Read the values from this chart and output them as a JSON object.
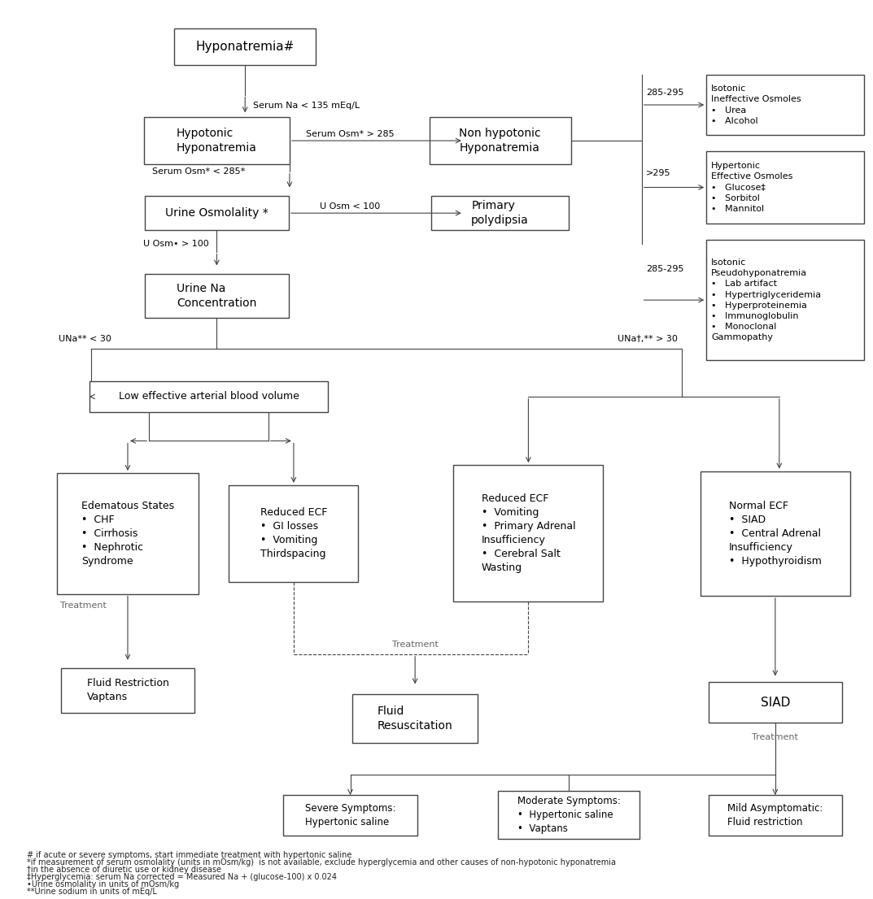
{
  "bg_color": "#ffffff",
  "box_edge_color": "#444444",
  "arrow_color": "#444444",
  "text_color": "#000000",
  "footnote_lines": [
    "# if acute or severe symptoms, start immediate treatment with hypertonic saline",
    "*if measurement of serum osmolality (units in mOsm/kg)  is not available, exclude hyperglycemia and other causes of non-hypotonic hyponatremia",
    "†in the absence of diuretic use or kidney disease",
    "‡Hyperglycemia: serum Na corrected = Measured Na + (glucose-100) x 0.024",
    "•Urine osmolality in units of mOsm/kg",
    "**Urine sodium in units of mEq/L"
  ]
}
